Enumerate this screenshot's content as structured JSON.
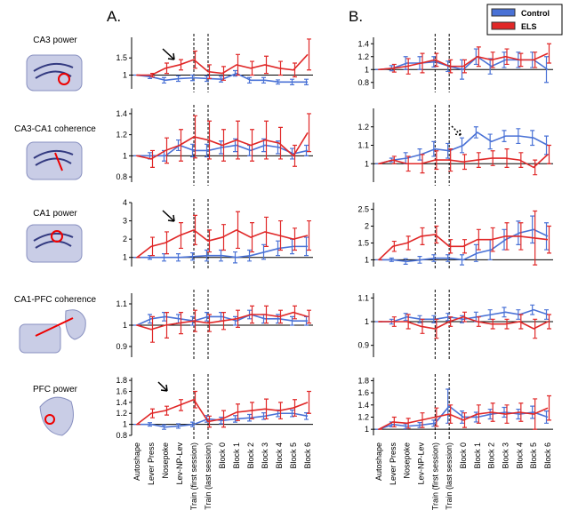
{
  "columns": [
    "A.",
    "B."
  ],
  "rows": [
    "CA3 power",
    "CA3-CA1 coherence",
    "CA1 power",
    "CA1-PFC coherence",
    "PFC power"
  ],
  "chart_data": [
    {
      "type": "line",
      "categories": [
        "Autoshape",
        "Lever Press",
        "Nosepoke",
        "Lev-NP-Lev",
        "Train (first session)",
        "Train (last session)",
        "Block 0",
        "Block 1",
        "Block 2",
        "Block 3",
        "Block 4",
        "Block 5",
        "Block 6"
      ],
      "ylim": [
        0.6,
        2.1
      ],
      "yticks": [
        1,
        1.5
      ],
      "hline": 1,
      "dashed_at": [
        "Train (first session)",
        "Train (last session)"
      ],
      "series": [
        {
          "name": "Control",
          "color": "#4a72d6",
          "values": [
            1,
            0.95,
            0.85,
            0.9,
            0.92,
            0.9,
            0.88,
            1.05,
            0.85,
            0.85,
            0.8,
            0.8,
            0.8
          ],
          "errors": [
            0,
            0.05,
            0.08,
            0.08,
            0.08,
            0.08,
            0.08,
            0.08,
            0.08,
            0.08,
            0.06,
            0.08,
            0.08
          ]
        },
        {
          "name": "ELS",
          "color": "#e02828",
          "values": [
            1,
            1.0,
            1.2,
            1.3,
            1.45,
            1.1,
            1.05,
            1.3,
            1.2,
            1.3,
            1.2,
            1.15,
            1.6
          ],
          "errors": [
            0,
            0.05,
            0.15,
            0.15,
            0.25,
            0.2,
            0.2,
            0.3,
            0.2,
            0.25,
            0.2,
            0.2,
            0.45
          ]
        }
      ]
    },
    {
      "type": "line",
      "categories": [
        "Autoshape",
        "Lever Press",
        "Nosepoke",
        "Lev-NP-Lev",
        "Train (first session)",
        "Train (last session)",
        "Block 0",
        "Block 1",
        "Block 2",
        "Block 3",
        "Block 4",
        "Block 5",
        "Block 6"
      ],
      "ylim": [
        0.75,
        1.45
      ],
      "yticks": [
        0.8,
        1,
        1.2,
        1.4
      ],
      "hline": 1,
      "dashed_at": [
        "Train (first session)",
        "Train (last session)"
      ],
      "series": [
        {
          "name": "Control",
          "color": "#4a72d6",
          "values": [
            1,
            1,
            1,
            1.1,
            1.05,
            1.05,
            1.08,
            1.1,
            1.05,
            1.1,
            1.08,
            1.02,
            1.05
          ],
          "errors": [
            0,
            0.03,
            0.05,
            0.05,
            0.06,
            0.06,
            0.06,
            0.06,
            0.05,
            0.06,
            0.06,
            0.05,
            0.05
          ]
        },
        {
          "name": "ELS",
          "color": "#e02828",
          "values": [
            1,
            0.97,
            1.05,
            1.1,
            1.18,
            1.15,
            1.1,
            1.15,
            1.1,
            1.15,
            1.12,
            1.0,
            1.22
          ],
          "errors": [
            0,
            0.08,
            0.12,
            0.15,
            0.2,
            0.18,
            0.15,
            0.18,
            0.15,
            0.18,
            0.15,
            0.1,
            0.18
          ]
        }
      ]
    },
    {
      "type": "line",
      "categories": [
        "Autoshape",
        "Lever Press",
        "Nosepoke",
        "Lev-NP-Lev",
        "Train (first session)",
        "Train (last session)",
        "Block 0",
        "Block 1",
        "Block 2",
        "Block 3",
        "Block 4",
        "Block 5",
        "Block 6"
      ],
      "ylim": [
        0.5,
        4
      ],
      "yticks": [
        1,
        2,
        3,
        4
      ],
      "hline": 1,
      "dashed_at": [
        "Train (first session)",
        "Train (last session)"
      ],
      "series": [
        {
          "name": "Control",
          "color": "#4a72d6",
          "values": [
            1,
            1,
            1,
            1,
            1.05,
            1.1,
            1.1,
            1.0,
            1.1,
            1.3,
            1.5,
            1.6,
            1.6
          ],
          "errors": [
            0,
            0.1,
            0.2,
            0.2,
            0.2,
            0.3,
            0.3,
            0.3,
            0.3,
            0.4,
            0.4,
            0.4,
            0.5
          ]
        },
        {
          "name": "ELS",
          "color": "#e02828",
          "values": [
            1,
            1.6,
            1.8,
            2.2,
            2.5,
            1.9,
            2.1,
            2.5,
            2.1,
            2.4,
            2.2,
            2.0,
            2.2
          ],
          "errors": [
            0,
            0.5,
            0.6,
            0.7,
            0.8,
            0.6,
            0.7,
            1.0,
            0.8,
            0.8,
            0.8,
            0.6,
            0.8
          ]
        }
      ]
    },
    {
      "type": "line",
      "categories": [
        "Autoshape",
        "Lever Press",
        "Nosepoke",
        "Lev-NP-Lev",
        "Train (first session)",
        "Train (last session)",
        "Block 0",
        "Block 1",
        "Block 2",
        "Block 3",
        "Block 4",
        "Block 5",
        "Block 6"
      ],
      "ylim": [
        0.85,
        1.15
      ],
      "yticks": [
        0.9,
        1,
        1.1
      ],
      "hline": 1,
      "dashed_at": [
        "Train (first session)",
        "Train (last session)"
      ],
      "series": [
        {
          "name": "Control",
          "color": "#4a72d6",
          "values": [
            1,
            1.03,
            1.04,
            1.03,
            1.02,
            1.04,
            1.04,
            1.02,
            1.05,
            1.03,
            1.03,
            1.02,
            1.02
          ],
          "errors": [
            0,
            0.02,
            0.02,
            0.02,
            0.02,
            0.02,
            0.02,
            0.02,
            0.02,
            0.02,
            0.02,
            0.02,
            0.02
          ]
        },
        {
          "name": "ELS",
          "color": "#e02828",
          "values": [
            1,
            0.98,
            1.0,
            1.01,
            1.02,
            1.01,
            1.02,
            1.03,
            1.05,
            1.05,
            1.04,
            1.06,
            1.04
          ],
          "errors": [
            0,
            0.06,
            0.06,
            0.05,
            0.05,
            0.04,
            0.04,
            0.04,
            0.04,
            0.04,
            0.03,
            0.03,
            0.03
          ]
        }
      ]
    },
    {
      "type": "line",
      "categories": [
        "Autoshape",
        "Lever Press",
        "Nosepoke",
        "Lev-NP-Lev",
        "Train (first session)",
        "Train (last session)",
        "Block 0",
        "Block 1",
        "Block 2",
        "Block 3",
        "Block 4",
        "Block 5",
        "Block 6"
      ],
      "ylim": [
        0.8,
        1.85
      ],
      "yticks": [
        0.8,
        1,
        1.2,
        1.4,
        1.6,
        1.8
      ],
      "hline": 1,
      "dashed_at": [
        "Train (first session)",
        "Train (last session)"
      ],
      "series": [
        {
          "name": "Control",
          "color": "#4a72d6",
          "values": [
            1,
            1.0,
            0.95,
            0.97,
            1.0,
            1.1,
            1.07,
            1.1,
            1.12,
            1.15,
            1.2,
            1.2,
            1.15
          ],
          "errors": [
            0,
            0.03,
            0.04,
            0.04,
            0.04,
            0.06,
            0.06,
            0.06,
            0.06,
            0.06,
            0.06,
            0.06,
            0.06
          ]
        },
        {
          "name": "ELS",
          "color": "#e02828",
          "values": [
            1,
            1.2,
            1.25,
            1.35,
            1.45,
            1.05,
            1.1,
            1.22,
            1.25,
            1.28,
            1.25,
            1.3,
            1.4
          ],
          "errors": [
            0,
            0.08,
            0.08,
            0.1,
            0.15,
            0.1,
            0.15,
            0.15,
            0.15,
            0.18,
            0.15,
            0.15,
            0.2
          ]
        }
      ]
    },
    {
      "type": "line",
      "categories": [
        "Autoshape",
        "Lever Press",
        "Nosepoke",
        "Lev-NP-Lev",
        "Train (first session)",
        "Train (last session)",
        "Block 0",
        "Block 1",
        "Block 2",
        "Block 3",
        "Block 4",
        "Block 5",
        "Block 6"
      ],
      "ylim": [
        0.7,
        1.5
      ],
      "yticks": [
        0.8,
        1,
        1.2,
        1.4
      ],
      "hline": 1,
      "dashed_at": [
        "Train (first session)",
        "Train (last session)"
      ],
      "series": [
        {
          "name": "Control",
          "color": "#4a72d6",
          "values": [
            1,
            1.02,
            1.1,
            1.1,
            1.12,
            1.05,
            1.0,
            1.2,
            1.05,
            1.15,
            1.15,
            1.15,
            1.0
          ],
          "errors": [
            0,
            0.04,
            0.1,
            0.1,
            0.08,
            0.08,
            0.15,
            0.12,
            0.12,
            0.12,
            0.12,
            0.12,
            0.2
          ]
        },
        {
          "name": "ELS",
          "color": "#e02828",
          "values": [
            1,
            1.02,
            1.05,
            1.1,
            1.15,
            1.05,
            1.05,
            1.2,
            1.15,
            1.2,
            1.15,
            1.15,
            1.25
          ],
          "errors": [
            0,
            0.06,
            0.12,
            0.15,
            0.1,
            0.1,
            0.1,
            0.15,
            0.12,
            0.12,
            0.1,
            0.12,
            0.15
          ]
        }
      ]
    },
    {
      "type": "line",
      "categories": [
        "Autoshape",
        "Lever Press",
        "Nosepoke",
        "Lev-NP-Lev",
        "Train (first session)",
        "Train (last session)",
        "Block 0",
        "Block 1",
        "Block 2",
        "Block 3",
        "Block 4",
        "Block 5",
        "Block 6"
      ],
      "ylim": [
        0.9,
        1.3
      ],
      "yticks": [
        1,
        1.1,
        1.2
      ],
      "hline": 1,
      "dashed_at": [
        "Train (first session)",
        "Train (last session)"
      ],
      "series": [
        {
          "name": "Control",
          "color": "#4a72d6",
          "values": [
            1,
            1.02,
            1.03,
            1.05,
            1.08,
            1.07,
            1.1,
            1.17,
            1.12,
            1.15,
            1.15,
            1.14,
            1.1
          ],
          "errors": [
            0,
            0.01,
            0.03,
            0.03,
            0.04,
            0.04,
            0.04,
            0.03,
            0.04,
            0.03,
            0.04,
            0.04,
            0.05
          ]
        },
        {
          "name": "ELS",
          "color": "#e02828",
          "values": [
            1,
            1.02,
            1.0,
            1.0,
            1.02,
            1.02,
            1.01,
            1.02,
            1.03,
            1.03,
            1.02,
            0.98,
            1.05
          ],
          "errors": [
            0,
            0.02,
            0.04,
            0.05,
            0.05,
            0.06,
            0.04,
            0.04,
            0.04,
            0.05,
            0.04,
            0.04,
            0.05
          ]
        }
      ]
    },
    {
      "type": "line",
      "categories": [
        "Autoshape",
        "Lever Press",
        "Nosepoke",
        "Lev-NP-Lev",
        "Train (first session)",
        "Train (last session)",
        "Block 0",
        "Block 1",
        "Block 2",
        "Block 3",
        "Block 4",
        "Block 5",
        "Block 6"
      ],
      "ylim": [
        0.8,
        2.7
      ],
      "yticks": [
        1,
        1.5,
        2,
        2.5
      ],
      "hline": 1,
      "dashed_at": [
        "Train (first session)",
        "Train (last session)"
      ],
      "series": [
        {
          "name": "Control",
          "color": "#4a72d6",
          "values": [
            1,
            1,
            0.95,
            1.0,
            1.05,
            1.05,
            1.0,
            1.2,
            1.3,
            1.6,
            1.8,
            1.9,
            1.7
          ],
          "errors": [
            0,
            0.05,
            0.08,
            0.1,
            0.1,
            0.1,
            0.15,
            0.25,
            0.3,
            0.3,
            0.35,
            0.4,
            0.4
          ]
        },
        {
          "name": "ELS",
          "color": "#e02828",
          "values": [
            1,
            1.4,
            1.5,
            1.7,
            1.75,
            1.4,
            1.4,
            1.6,
            1.6,
            1.7,
            1.7,
            1.65,
            1.6
          ],
          "errors": [
            0,
            0.15,
            0.2,
            0.25,
            0.25,
            0.2,
            0.2,
            0.3,
            0.35,
            0.4,
            0.4,
            0.8,
            0.4
          ]
        }
      ]
    },
    {
      "type": "line",
      "categories": [
        "Autoshape",
        "Lever Press",
        "Nosepoke",
        "Lev-NP-Lev",
        "Train (first session)",
        "Train (last session)",
        "Block 0",
        "Block 1",
        "Block 2",
        "Block 3",
        "Block 4",
        "Block 5",
        "Block 6"
      ],
      "ylim": [
        0.85,
        1.12
      ],
      "yticks": [
        0.9,
        1,
        1.1
      ],
      "hline": 1,
      "dashed_at": [
        "Train (first session)",
        "Train (last session)"
      ],
      "series": [
        {
          "name": "Control",
          "color": "#4a72d6",
          "values": [
            1,
            1.0,
            1.02,
            1.01,
            1.01,
            1.02,
            1.01,
            1.02,
            1.03,
            1.04,
            1.03,
            1.05,
            1.03
          ],
          "errors": [
            0,
            0.01,
            0.015,
            0.015,
            0.015,
            0.015,
            0.015,
            0.02,
            0.02,
            0.02,
            0.02,
            0.02,
            0.02
          ]
        },
        {
          "name": "ELS",
          "color": "#e02828",
          "values": [
            1,
            1.0,
            1.0,
            0.98,
            0.97,
            1.0,
            1.02,
            1.0,
            0.99,
            0.99,
            1.0,
            0.97,
            1.0
          ],
          "errors": [
            0,
            0.02,
            0.03,
            0.03,
            0.04,
            0.02,
            0.02,
            0.02,
            0.02,
            0.02,
            0.03,
            0.04,
            0.03
          ]
        }
      ]
    },
    {
      "type": "line",
      "categories": [
        "Autoshape",
        "Lever Press",
        "Nosepoke",
        "Lev-NP-Lev",
        "Train (first session)",
        "Train (last session)",
        "Block 0",
        "Block 1",
        "Block 2",
        "Block 3",
        "Block 4",
        "Block 5",
        "Block 6"
      ],
      "ylim": [
        0.9,
        1.85
      ],
      "yticks": [
        1,
        1.2,
        1.4,
        1.6,
        1.8
      ],
      "hline": 1,
      "dashed_at": [
        "Train (first session)",
        "Train (last session)"
      ],
      "series": [
        {
          "name": "Control",
          "color": "#4a72d6",
          "values": [
            1,
            1.08,
            1.05,
            1.07,
            1.1,
            1.38,
            1.2,
            1.2,
            1.25,
            1.28,
            1.25,
            1.28,
            1.2
          ],
          "errors": [
            0,
            0.04,
            0.04,
            0.04,
            0.05,
            0.28,
            0.1,
            0.08,
            0.08,
            0.08,
            0.08,
            0.1,
            0.1
          ]
        },
        {
          "name": "ELS",
          "color": "#e02828",
          "values": [
            1,
            1.12,
            1.1,
            1.15,
            1.2,
            1.25,
            1.15,
            1.25,
            1.28,
            1.25,
            1.28,
            1.25,
            1.35
          ],
          "errors": [
            0,
            0.08,
            0.08,
            0.12,
            0.15,
            0.15,
            0.12,
            0.15,
            0.15,
            0.15,
            0.15,
            0.25,
            0.2
          ]
        }
      ]
    }
  ]
}
